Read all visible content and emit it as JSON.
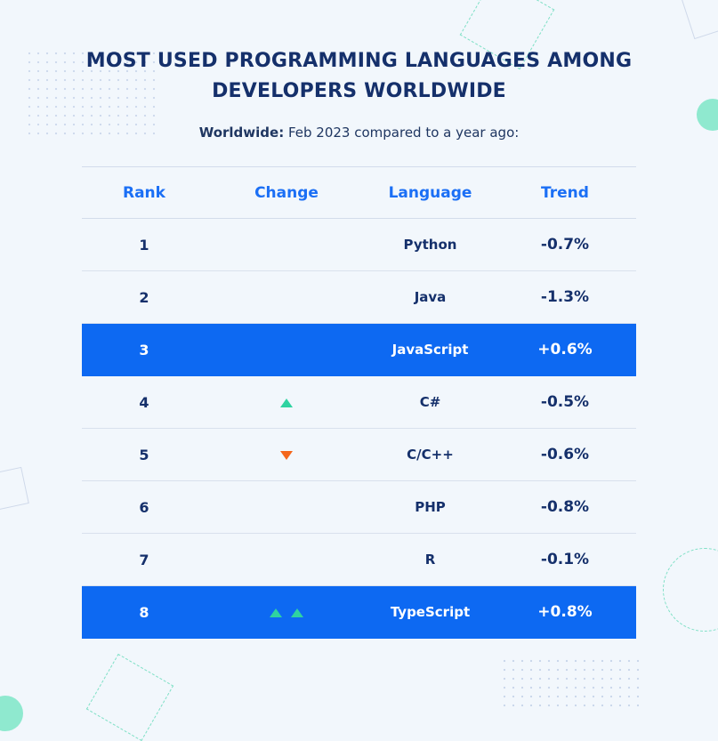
{
  "title": {
    "line1": "MOST USED PROGRAMMING LANGUAGES AMONG",
    "line2": "DEVELOPERS WORLDWIDE"
  },
  "subtitle": {
    "bold": "Worldwide:",
    "text": " Feb 2023 compared to a year ago:"
  },
  "colors": {
    "title": "#15306b",
    "header": "#1b6ff5",
    "highlight_row": "#0d69f2",
    "up_arrow": "#2fd3a1",
    "down_arrow": "#f4661b"
  },
  "chart_data": {
    "type": "table",
    "columns": [
      "Rank",
      "Change",
      "Language",
      "Trend"
    ],
    "rows": [
      {
        "rank": "1",
        "change": [],
        "language": "Python",
        "trend": "-0.7%",
        "highlight": false
      },
      {
        "rank": "2",
        "change": [],
        "language": "Java",
        "trend": "-1.3%",
        "highlight": false
      },
      {
        "rank": "3",
        "change": [],
        "language": "JavaScript",
        "trend": "+0.6%",
        "highlight": true
      },
      {
        "rank": "4",
        "change": [
          "up"
        ],
        "language": "C#",
        "trend": "-0.5%",
        "highlight": false
      },
      {
        "rank": "5",
        "change": [
          "down"
        ],
        "language": "C/C++",
        "trend": "-0.6%",
        "highlight": false
      },
      {
        "rank": "6",
        "change": [],
        "language": "PHP",
        "trend": "-0.8%",
        "highlight": false
      },
      {
        "rank": "7",
        "change": [],
        "language": "R",
        "trend": "-0.1%",
        "highlight": false
      },
      {
        "rank": "8",
        "change": [
          "up",
          "up"
        ],
        "language": "TypeScript",
        "trend": "+0.8%",
        "highlight": true
      }
    ]
  }
}
